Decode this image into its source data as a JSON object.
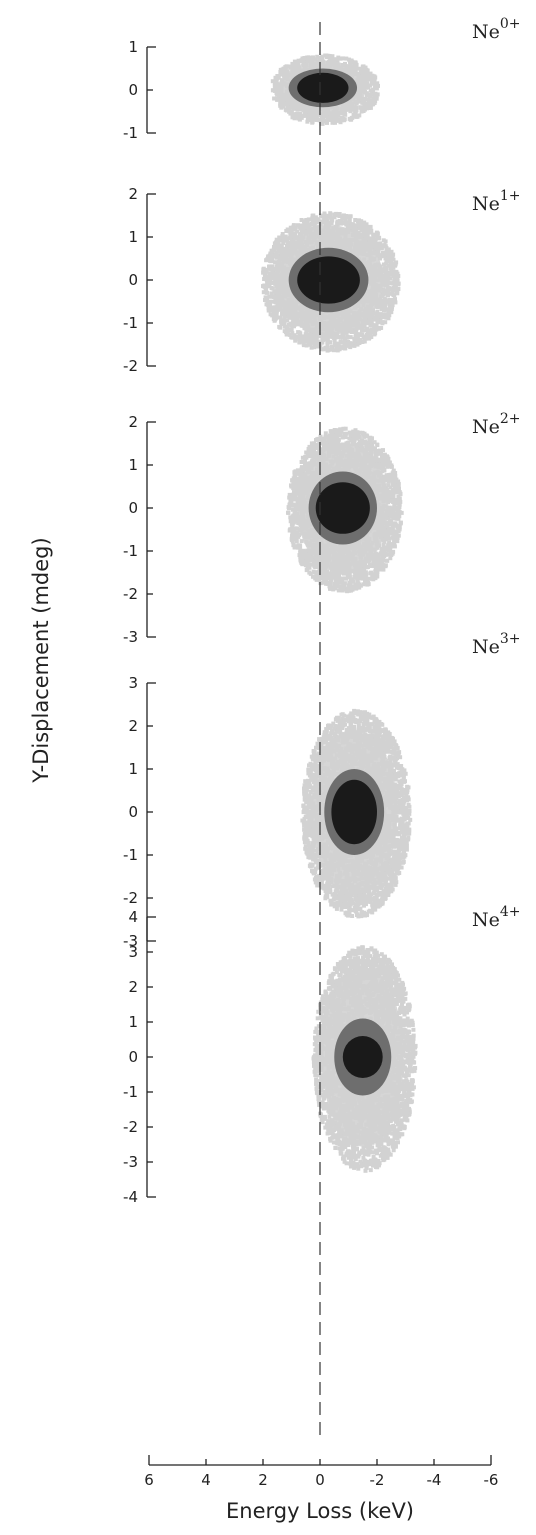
{
  "chart_data": {
    "type": "scatter",
    "xlabel": "Energy Loss (keV)",
    "ylabel": "Y-Displacement (mdeg)",
    "x_ticks": [
      6,
      4,
      2,
      0,
      -2,
      -4,
      -6
    ],
    "x_tick_labels": [
      "6",
      "4",
      "2",
      "0",
      "-2",
      "-4",
      "-6"
    ],
    "xlim": [
      6,
      -6
    ],
    "reference_line_x": 0,
    "panels": [
      {
        "label_base": "Ne",
        "label_charge": "0+",
        "ylim": [
          -1,
          1
        ],
        "y_ticks": [
          1,
          0,
          -1
        ],
        "y_tick_labels": [
          "1",
          "0",
          "-1"
        ],
        "centroid": {
          "x": -0.1,
          "y": 0.05
        },
        "core": {
          "rx": 0.9,
          "ry": 0.35
        },
        "mid": {
          "rx": 1.2,
          "ry": 0.45
        },
        "halo": {
          "rx": 1.9,
          "ry": 0.8
        }
      },
      {
        "label_base": "Ne",
        "label_charge": "1+",
        "ylim": [
          -2,
          2
        ],
        "y_ticks": [
          2,
          1,
          0,
          -1,
          -2
        ],
        "y_tick_labels": [
          "2",
          "1",
          "0",
          "-1",
          "-2"
        ],
        "centroid": {
          "x": -0.3,
          "y": 0.0
        },
        "core": {
          "rx": 1.1,
          "ry": 0.55
        },
        "mid": {
          "rx": 1.4,
          "ry": 0.75
        },
        "halo": {
          "rx": 2.4,
          "ry": 1.6
        }
      },
      {
        "label_base": "Ne",
        "label_charge": "2+",
        "ylim": [
          -3,
          2
        ],
        "y_ticks": [
          2,
          1,
          0,
          -1,
          -2,
          -3
        ],
        "y_tick_labels": [
          "2",
          "1",
          "0",
          "-1",
          "-2",
          "-3"
        ],
        "centroid": {
          "x": -0.8,
          "y": 0.0
        },
        "core": {
          "rx": 0.95,
          "ry": 0.6
        },
        "mid": {
          "rx": 1.2,
          "ry": 0.85
        },
        "halo": {
          "rx": 2.0,
          "ry": 1.9
        }
      },
      {
        "label_base": "Ne",
        "label_charge": "3+",
        "ylim": [
          -3,
          3
        ],
        "y_ticks": [
          3,
          2,
          1,
          0,
          -1,
          -2,
          -3
        ],
        "y_tick_labels": [
          "3",
          "2",
          "1",
          "0",
          "-1",
          "-2",
          "-3"
        ],
        "centroid": {
          "x": -1.2,
          "y": 0.0
        },
        "core": {
          "rx": 0.8,
          "ry": 0.75
        },
        "mid": {
          "rx": 1.05,
          "ry": 1.0
        },
        "halo": {
          "rx": 1.9,
          "ry": 2.4
        }
      },
      {
        "label_base": "Ne",
        "label_charge": "4+",
        "ylim": [
          -4,
          4
        ],
        "y_ticks": [
          4,
          3,
          2,
          1,
          0,
          -1,
          -2,
          -3,
          -4
        ],
        "y_tick_labels": [
          "4",
          "3",
          "2",
          "1",
          "0",
          "-1",
          "-2",
          "-3",
          "-4"
        ],
        "centroid": {
          "x": -1.5,
          "y": 0.0
        },
        "core": {
          "rx": 0.7,
          "ry": 0.6
        },
        "mid": {
          "rx": 1.0,
          "ry": 1.1
        },
        "halo": {
          "rx": 1.8,
          "ry": 3.2
        }
      }
    ],
    "colors": {
      "core": "#1a1a1a",
      "mid": "#6e6e6e",
      "halo": "#d2d2d2",
      "axis": "#222222"
    },
    "grid": false
  }
}
